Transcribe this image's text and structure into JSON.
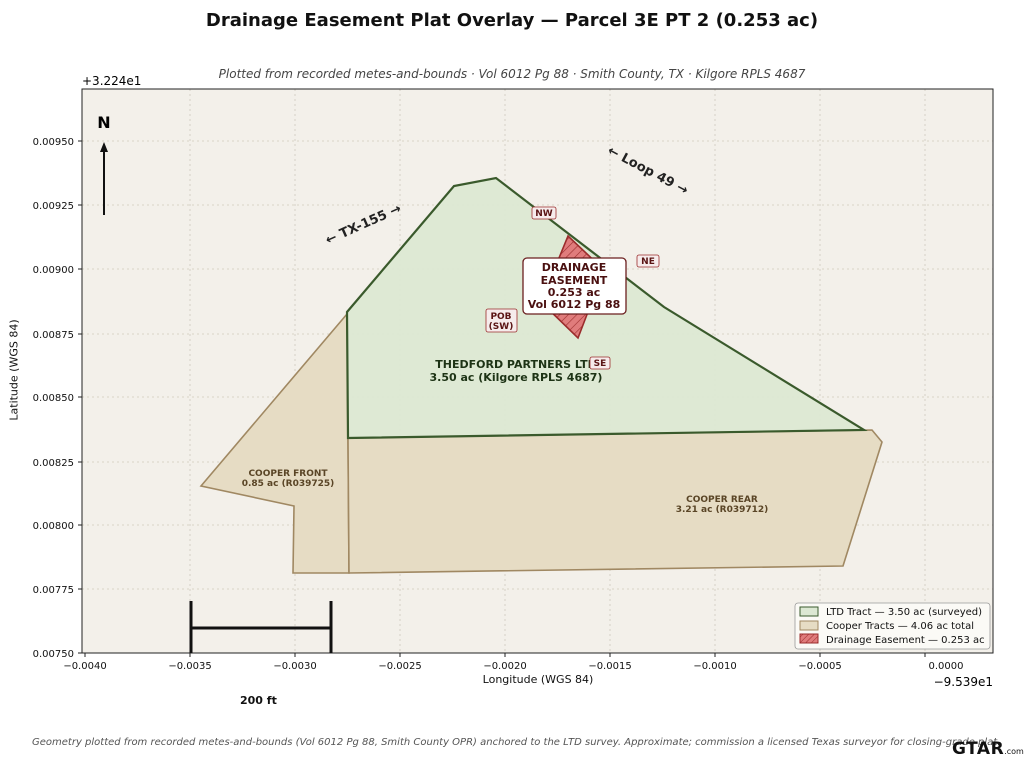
{
  "title": "Drainage Easement Plat Overlay — Parcel 3E PT 2 (0.253 ac)",
  "subtitle": "Plotted from recorded metes-and-bounds · Vol 6012 Pg 88 · Smith County, TX · Kilgore RPLS 4687",
  "axes": {
    "xlabel": "Longitude (WGS 84)",
    "ylabel": "Latitude (WGS 84)",
    "x_offset_label": "−9.539e1",
    "y_offset_label": "+3.224e1",
    "x_ticks": [
      "−0.0040",
      "−0.0035",
      "−0.0030",
      "−0.0025",
      "−0.0020",
      "−0.0015",
      "−0.0010",
      "−0.0005",
      "0.0000"
    ],
    "y_ticks": [
      "0.00750",
      "0.00775",
      "0.00800",
      "0.00825",
      "0.00850",
      "0.00875",
      "0.00900",
      "0.00925",
      "0.00950"
    ]
  },
  "map_labels": {
    "north": "N",
    "road_tx155": "← TX-155 →",
    "road_loop49": "← Loop 49 →",
    "ltd_name": "THEDFORD PARTNERS LTD",
    "ltd_area": "3.50 ac (Kilgore RPLS 4687)",
    "cooper_front_name": "COOPER FRONT",
    "cooper_front_area": "0.85 ac (R039725)",
    "cooper_rear_name": "COOPER REAR",
    "cooper_rear_area": "3.21 ac (R039712)",
    "easement_line1": "DRAINAGE",
    "easement_line2": "EASEMENT",
    "easement_line3": "0.253 ac",
    "easement_line4": "Vol 6012 Pg 88",
    "corner_nw": "NW",
    "corner_ne": "NE",
    "corner_se": "SE",
    "pob_line1": "POB",
    "pob_line2": "(SW)",
    "scale": "200 ft"
  },
  "legend": {
    "placement": "bottom-right",
    "items": [
      {
        "label": "LTD Tract — 3.50 ac (surveyed)",
        "color": "#dce8d3",
        "edge": "#3a5a2c"
      },
      {
        "label": "Cooper Tracts — 4.06 ac total",
        "color": "#e6dcc4",
        "edge": "#a08862"
      },
      {
        "label": "Drainage Easement — 0.253 ac",
        "color": "#e07c7c",
        "edge": "#9b2c2c"
      }
    ]
  },
  "footnote": "Geometry plotted from recorded metes-and-bounds (Vol 6012 Pg 88, Smith County OPR) anchored to the LTD survey. Approximate; commission a licensed Texas surveyor for closing-grade plat.",
  "watermark": "GTAR",
  "watermark_suffix": ".com",
  "colors": {
    "background": "#f3f0ea",
    "ltd_fill": "#dce8d3",
    "ltd_edge": "#3a5a2c",
    "cooper_fill": "#e6dcc4",
    "cooper_edge": "#a08862",
    "easement_fill": "#e07c7c",
    "easement_edge": "#9b2c2c"
  }
}
